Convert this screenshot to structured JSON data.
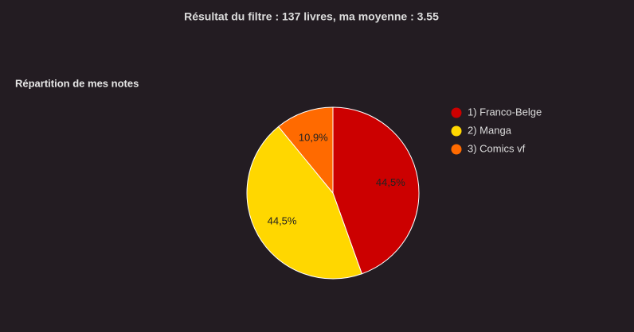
{
  "header": {
    "title": "Résultat du filtre : 137 livres, ma moyenne : 3.55"
  },
  "chart_data": {
    "type": "pie",
    "title": "Répartition de mes notes",
    "categories": [
      "1) Franco-Belge",
      "2) Manga",
      "3) Comics vf"
    ],
    "values": [
      44.5,
      44.5,
      10.9
    ],
    "value_labels": [
      "44,5%",
      "44,5%",
      "10,9%"
    ],
    "colors": [
      "#cc0000",
      "#ffd700",
      "#ff6a00"
    ],
    "legend": "right"
  }
}
